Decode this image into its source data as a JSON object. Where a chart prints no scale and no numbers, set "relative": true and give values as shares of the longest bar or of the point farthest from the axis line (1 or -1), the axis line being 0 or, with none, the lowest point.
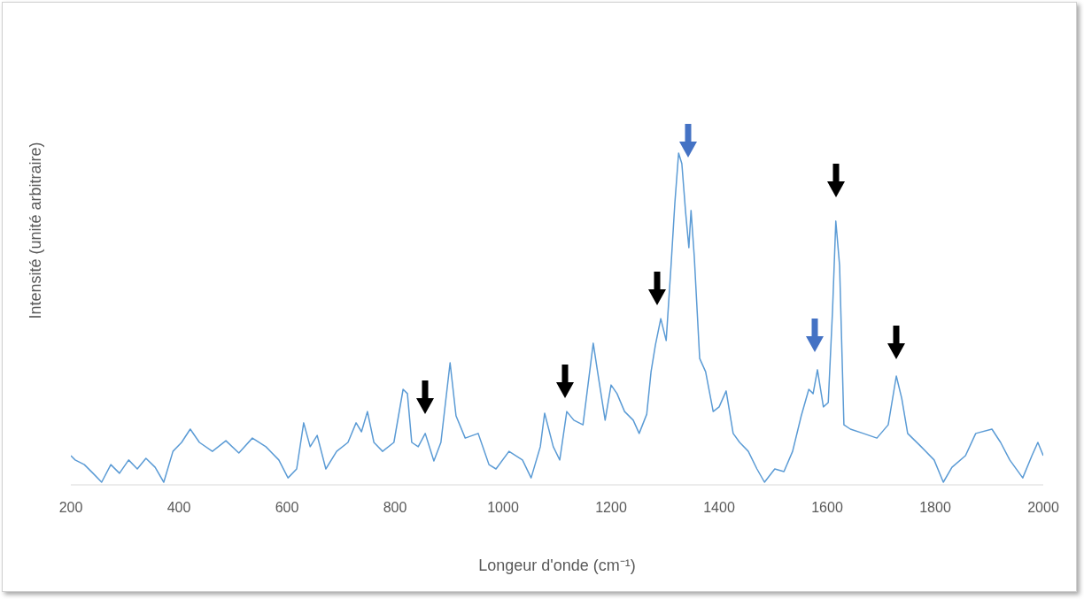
{
  "chart_data": {
    "type": "line",
    "xlabel": "Longeur d'onde (cm⁻¹)",
    "ylabel": "Intensité (unité arbitraire)",
    "relative": true,
    "xlim": [
      200,
      2000
    ],
    "xticks": [
      200,
      400,
      600,
      800,
      1000,
      1200,
      1400,
      1600,
      1800,
      2000
    ],
    "marker": "none",
    "line_style": "solid",
    "series": [
      {
        "color": "#5b9bd5",
        "x": [
          200,
          208,
          225,
          241,
          257,
          274,
          290,
          307,
          323,
          339,
          356,
          372,
          389,
          405,
          421,
          438,
          462,
          487,
          511,
          536,
          561,
          585,
          602,
          618,
          631,
          643,
          656,
          672,
          692,
          713,
          728,
          738,
          749,
          761,
          777,
          798,
          815,
          823,
          831,
          843,
          856,
          872,
          885,
          902,
          913,
          930,
          954,
          974,
          987,
          1011,
          1036,
          1052,
          1069,
          1077,
          1093,
          1105,
          1118,
          1131,
          1148,
          1167,
          1175,
          1189,
          1200,
          1211,
          1225,
          1241,
          1252,
          1266,
          1274,
          1282,
          1292,
          1302,
          1311,
          1318,
          1325,
          1331,
          1338,
          1344,
          1348,
          1354,
          1364,
          1375,
          1389,
          1400,
          1413,
          1426,
          1438,
          1454,
          1470,
          1484,
          1503,
          1520,
          1536,
          1552,
          1566,
          1574,
          1582,
          1593,
          1602,
          1610,
          1616,
          1623,
          1631,
          1643,
          1667,
          1692,
          1713,
          1728,
          1738,
          1749,
          1774,
          1798,
          1815,
          1831,
          1856,
          1875,
          1905,
          1921,
          1938,
          1962,
          1979,
          1990,
          2000
        ],
        "values": [
          0.088,
          0.075,
          0.061,
          0.035,
          0.008,
          0.061,
          0.035,
          0.075,
          0.048,
          0.08,
          0.053,
          0.008,
          0.101,
          0.128,
          0.168,
          0.128,
          0.101,
          0.133,
          0.096,
          0.141,
          0.115,
          0.075,
          0.021,
          0.048,
          0.187,
          0.115,
          0.149,
          0.048,
          0.101,
          0.128,
          0.187,
          0.16,
          0.221,
          0.128,
          0.101,
          0.128,
          0.288,
          0.275,
          0.128,
          0.115,
          0.155,
          0.072,
          0.128,
          0.368,
          0.208,
          0.141,
          0.155,
          0.061,
          0.048,
          0.101,
          0.075,
          0.021,
          0.115,
          0.216,
          0.115,
          0.075,
          0.221,
          0.195,
          0.181,
          0.427,
          0.341,
          0.195,
          0.301,
          0.275,
          0.221,
          0.195,
          0.155,
          0.213,
          0.341,
          0.421,
          0.501,
          0.435,
          0.661,
          0.848,
          1.0,
          0.968,
          0.821,
          0.715,
          0.827,
          0.688,
          0.381,
          0.341,
          0.221,
          0.235,
          0.283,
          0.155,
          0.128,
          0.101,
          0.048,
          0.008,
          0.048,
          0.04,
          0.101,
          0.208,
          0.288,
          0.275,
          0.347,
          0.235,
          0.248,
          0.528,
          0.795,
          0.661,
          0.181,
          0.168,
          0.155,
          0.141,
          0.181,
          0.328,
          0.261,
          0.155,
          0.115,
          0.075,
          0.008,
          0.053,
          0.088,
          0.155,
          0.168,
          0.128,
          0.075,
          0.021,
          0.088,
          0.128,
          0.088
        ]
      }
    ]
  }
}
